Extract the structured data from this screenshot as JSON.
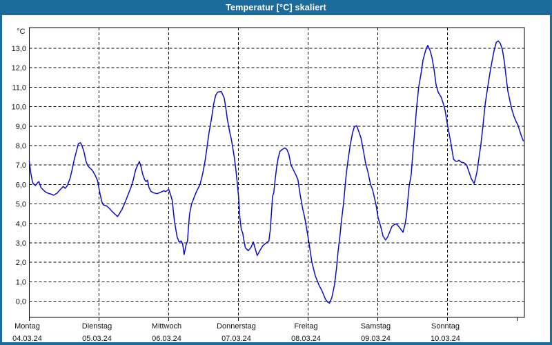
{
  "window": {
    "title": "Temperatur [°C] skaliert",
    "titlebar_color": "#1c6b9d",
    "border_color": "#1c6b9d"
  },
  "chart_data": {
    "type": "line",
    "title": "Temperatur [°C] skaliert",
    "unit_label": "°C",
    "grid": "dashed",
    "ylim": [
      -0.8,
      14.1
    ],
    "y_ticks": [
      {
        "value": 0,
        "label": "0,0"
      },
      {
        "value": 1,
        "label": "1,0"
      },
      {
        "value": 2,
        "label": "2,0"
      },
      {
        "value": 3,
        "label": "3,0"
      },
      {
        "value": 4,
        "label": "4,0"
      },
      {
        "value": 5,
        "label": "5,0"
      },
      {
        "value": 6,
        "label": "6,0"
      },
      {
        "value": 7,
        "label": "7,0"
      },
      {
        "value": 8,
        "label": "8,0"
      },
      {
        "value": 9,
        "label": "9,0"
      },
      {
        "value": 10,
        "label": "10,0"
      },
      {
        "value": 11,
        "label": "11,0"
      },
      {
        "value": 12,
        "label": "12,0"
      },
      {
        "value": 13,
        "label": "13,0"
      }
    ],
    "x_axis": {
      "unit": "hours",
      "hours_visible": 170.5,
      "end_tick_hour": 168,
      "tick_interval_hours": 24
    },
    "days": [
      {
        "label": "Montag",
        "date": "04.03.24",
        "start_hour": 0
      },
      {
        "label": "Dienstag",
        "date": "05.03.24",
        "start_hour": 24
      },
      {
        "label": "Mittwoch",
        "date": "06.03.24",
        "start_hour": 48
      },
      {
        "label": "Donnerstag",
        "date": "07.03.24",
        "start_hour": 72
      },
      {
        "label": "Freitag",
        "date": "08.03.24",
        "start_hour": 96
      },
      {
        "label": "Samstag",
        "date": "09.03.24",
        "start_hour": 120
      },
      {
        "label": "Sonntag",
        "date": "10.03.24",
        "start_hour": 144
      }
    ],
    "series": [
      {
        "name": "Temperatur",
        "color": "#0a0acd",
        "points": [
          [
            0,
            7.2
          ],
          [
            0.5,
            6.6
          ],
          [
            1,
            6.2
          ],
          [
            1.3,
            6.05
          ],
          [
            2.1,
            5.95
          ],
          [
            2.9,
            6.1
          ],
          [
            3.3,
            6.15
          ],
          [
            4,
            5.85
          ],
          [
            4.8,
            5.72
          ],
          [
            5.7,
            5.6
          ],
          [
            6.5,
            5.55
          ],
          [
            7.6,
            5.5
          ],
          [
            8.4,
            5.45
          ],
          [
            9.5,
            5.55
          ],
          [
            10.7,
            5.75
          ],
          [
            11.7,
            5.9
          ],
          [
            12.4,
            5.8
          ],
          [
            13.1,
            5.95
          ],
          [
            14,
            6.3
          ],
          [
            14.7,
            6.75
          ],
          [
            15.5,
            7.3
          ],
          [
            16.4,
            7.8
          ],
          [
            16.9,
            8.1
          ],
          [
            17.6,
            8.15
          ],
          [
            18.1,
            8.0
          ],
          [
            18.8,
            7.7
          ],
          [
            19.5,
            7.2
          ],
          [
            20,
            7.0
          ],
          [
            20.7,
            6.87
          ],
          [
            21.6,
            6.75
          ],
          [
            22.6,
            6.5
          ],
          [
            23.5,
            6.2
          ],
          [
            24.3,
            5.55
          ],
          [
            25,
            5.1
          ],
          [
            25.5,
            4.95
          ],
          [
            26.6,
            4.9
          ],
          [
            27.4,
            4.8
          ],
          [
            28.3,
            4.65
          ],
          [
            29.3,
            4.5
          ],
          [
            30.4,
            4.35
          ],
          [
            31,
            4.5
          ],
          [
            31.9,
            4.72
          ],
          [
            32.6,
            4.95
          ],
          [
            33.4,
            5.25
          ],
          [
            34.2,
            5.55
          ],
          [
            35,
            5.85
          ],
          [
            35.8,
            6.25
          ],
          [
            36.6,
            6.75
          ],
          [
            37.3,
            7.0
          ],
          [
            37.9,
            7.18
          ],
          [
            38.5,
            6.9
          ],
          [
            39,
            6.55
          ],
          [
            39.7,
            6.25
          ],
          [
            40.2,
            6.15
          ],
          [
            40.7,
            6.22
          ],
          [
            41.2,
            5.85
          ],
          [
            41.9,
            5.65
          ],
          [
            42.8,
            5.57
          ],
          [
            44,
            5.53
          ],
          [
            45.2,
            5.6
          ],
          [
            46.4,
            5.68
          ],
          [
            46.9,
            5.63
          ],
          [
            48,
            5.75
          ],
          [
            48.6,
            5.5
          ],
          [
            49.2,
            5.2
          ],
          [
            50,
            4.1
          ],
          [
            50.9,
            3.3
          ],
          [
            51.6,
            3.05
          ],
          [
            52.3,
            3.1
          ],
          [
            52.8,
            2.95
          ],
          [
            53.3,
            2.4
          ],
          [
            54,
            2.9
          ],
          [
            54.5,
            3.1
          ],
          [
            54.8,
            3.8
          ],
          [
            55.2,
            4.5
          ],
          [
            55.9,
            5.0
          ],
          [
            56.8,
            5.35
          ],
          [
            57.6,
            5.65
          ],
          [
            58.8,
            6.0
          ],
          [
            59.7,
            6.55
          ],
          [
            60.4,
            7.1
          ],
          [
            61.1,
            7.8
          ],
          [
            61.8,
            8.6
          ],
          [
            62.8,
            9.45
          ],
          [
            63.5,
            10.15
          ],
          [
            64.2,
            10.6
          ],
          [
            64.9,
            10.75
          ],
          [
            66.1,
            10.78
          ],
          [
            67.1,
            10.45
          ],
          [
            67.7,
            9.9
          ],
          [
            68.2,
            9.35
          ],
          [
            69,
            8.7
          ],
          [
            69.6,
            8.3
          ],
          [
            70.1,
            7.85
          ],
          [
            70.6,
            7.4
          ],
          [
            71.1,
            6.8
          ],
          [
            71.6,
            6.1
          ],
          [
            72.1,
            5.3
          ],
          [
            72.5,
            4.3
          ],
          [
            73,
            3.7
          ],
          [
            73.5,
            3.5
          ],
          [
            73.8,
            3.2
          ],
          [
            74.4,
            2.75
          ],
          [
            75.4,
            2.6
          ],
          [
            76.4,
            2.78
          ],
          [
            77.1,
            3.05
          ],
          [
            77.8,
            2.7
          ],
          [
            78.5,
            2.35
          ],
          [
            79.4,
            2.6
          ],
          [
            80.4,
            2.85
          ],
          [
            81.6,
            3.0
          ],
          [
            82.5,
            3.1
          ],
          [
            83,
            3.7
          ],
          [
            83.4,
            4.6
          ],
          [
            83.8,
            5.4
          ],
          [
            84.2,
            5.58
          ],
          [
            84.7,
            6.3
          ],
          [
            85.2,
            6.9
          ],
          [
            85.7,
            7.35
          ],
          [
            86.3,
            7.7
          ],
          [
            87.1,
            7.8
          ],
          [
            88,
            7.88
          ],
          [
            88.7,
            7.8
          ],
          [
            89.4,
            7.55
          ],
          [
            90.1,
            7.0
          ],
          [
            91.1,
            6.7
          ],
          [
            91.8,
            6.5
          ],
          [
            92.5,
            6.25
          ],
          [
            93.2,
            5.55
          ],
          [
            94,
            4.85
          ],
          [
            94.9,
            4.25
          ],
          [
            95.6,
            3.65
          ],
          [
            96.3,
            3.0
          ],
          [
            97.3,
            2.0
          ],
          [
            98.5,
            1.3
          ],
          [
            99.7,
            0.85
          ],
          [
            100.9,
            0.5
          ],
          [
            102,
            0.1
          ],
          [
            102.8,
            -0.05
          ],
          [
            103.4,
            -0.1
          ],
          [
            104.2,
            0.2
          ],
          [
            105.1,
            0.85
          ],
          [
            105.8,
            1.7
          ],
          [
            106.3,
            2.5
          ],
          [
            107,
            3.4
          ],
          [
            107.5,
            4.15
          ],
          [
            108.2,
            5.0
          ],
          [
            108.7,
            5.8
          ],
          [
            109.2,
            6.6
          ],
          [
            109.9,
            7.4
          ],
          [
            110.6,
            8.1
          ],
          [
            111.3,
            8.65
          ],
          [
            112,
            8.98
          ],
          [
            112.7,
            9.02
          ],
          [
            113.4,
            8.75
          ],
          [
            114.2,
            8.4
          ],
          [
            115.1,
            7.7
          ],
          [
            115.8,
            7.1
          ],
          [
            116.6,
            6.65
          ],
          [
            117.5,
            6.0
          ],
          [
            118.2,
            5.75
          ],
          [
            119.4,
            4.95
          ],
          [
            120.1,
            4.3
          ],
          [
            121,
            3.85
          ],
          [
            121.8,
            3.35
          ],
          [
            122.7,
            3.15
          ],
          [
            123.4,
            3.3
          ],
          [
            124.2,
            3.6
          ],
          [
            124.9,
            3.85
          ],
          [
            125.8,
            3.95
          ],
          [
            126.5,
            3.97
          ],
          [
            127.7,
            3.75
          ],
          [
            128.7,
            3.55
          ],
          [
            129.4,
            3.95
          ],
          [
            129.9,
            4.4
          ],
          [
            130.3,
            5.1
          ],
          [
            130.8,
            5.9
          ],
          [
            131.5,
            6.5
          ],
          [
            132.2,
            7.8
          ],
          [
            132.7,
            8.7
          ],
          [
            133.4,
            10.0
          ],
          [
            134.1,
            11.0
          ],
          [
            134.9,
            11.7
          ],
          [
            135.6,
            12.4
          ],
          [
            136.5,
            12.9
          ],
          [
            137.2,
            13.15
          ],
          [
            138,
            12.9
          ],
          [
            138.7,
            12.5
          ],
          [
            139.4,
            11.9
          ],
          [
            140.1,
            11.1
          ],
          [
            140.8,
            10.75
          ],
          [
            141.8,
            10.5
          ],
          [
            142.7,
            10.1
          ],
          [
            143.2,
            9.8
          ],
          [
            143.9,
            9.15
          ],
          [
            144.6,
            8.6
          ],
          [
            145.1,
            8.2
          ],
          [
            145.6,
            7.75
          ],
          [
            146.1,
            7.3
          ],
          [
            146.8,
            7.2
          ],
          [
            147.5,
            7.2
          ],
          [
            148,
            7.25
          ],
          [
            148.7,
            7.15
          ],
          [
            149.9,
            7.1
          ],
          [
            150.6,
            7.0
          ],
          [
            151.3,
            6.7
          ],
          [
            152.2,
            6.3
          ],
          [
            153.2,
            6.05
          ],
          [
            154.1,
            6.6
          ],
          [
            154.8,
            7.3
          ],
          [
            155.5,
            8.05
          ],
          [
            156.3,
            9.1
          ],
          [
            157,
            10.15
          ],
          [
            157.9,
            11.05
          ],
          [
            158.6,
            11.7
          ],
          [
            159.3,
            12.3
          ],
          [
            160.1,
            12.9
          ],
          [
            160.8,
            13.3
          ],
          [
            161.5,
            13.38
          ],
          [
            162.2,
            13.25
          ],
          [
            162.9,
            12.95
          ],
          [
            163.6,
            12.3
          ],
          [
            164.3,
            11.4
          ],
          [
            164.8,
            10.8
          ],
          [
            165.5,
            10.3
          ],
          [
            166.2,
            9.85
          ],
          [
            166.9,
            9.5
          ],
          [
            167.6,
            9.25
          ],
          [
            168.3,
            9.05
          ],
          [
            169,
            8.7
          ],
          [
            169.7,
            8.4
          ],
          [
            170.1,
            8.25
          ]
        ]
      }
    ]
  }
}
